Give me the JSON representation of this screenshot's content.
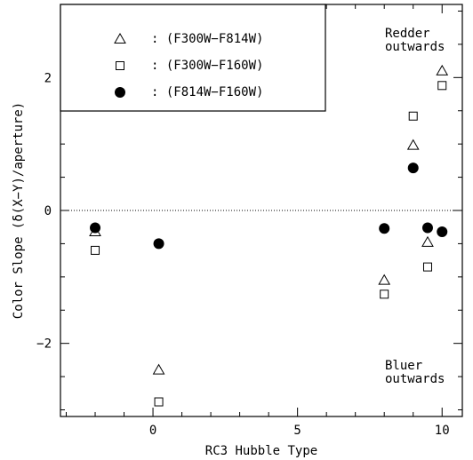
{
  "chart_data": {
    "type": "scatter",
    "xlabel": "RC3 Hubble Type",
    "ylabel": "Color Slope (δ(X−Y)/aperture)",
    "xlim": [
      -3.2,
      10.7
    ],
    "ylim": [
      -3.1,
      3.1
    ],
    "x_ticks": [
      0,
      5,
      10
    ],
    "x_tick_labels": [
      "0",
      "5",
      "10"
    ],
    "y_ticks": [
      -2,
      0,
      2
    ],
    "y_tick_labels": [
      "−2",
      "0",
      "2"
    ],
    "reference_line": {
      "y": 0,
      "style": "dotted"
    },
    "legend_placement": "top-left",
    "annotations": [
      {
        "lines": [
          "Redder",
          "outwards"
        ],
        "position": "top-right"
      },
      {
        "lines": [
          "Bluer",
          "outwards"
        ],
        "position": "bottom-right"
      }
    ],
    "series": [
      {
        "name": ": (F300W−F814W)",
        "marker": "open-triangle",
        "points": [
          [
            -2.0,
            -0.32
          ],
          [
            0.2,
            -2.4
          ],
          [
            8.0,
            -1.05
          ],
          [
            9.0,
            0.98
          ],
          [
            9.5,
            -0.48
          ],
          [
            10.0,
            2.1
          ]
        ]
      },
      {
        "name": ": (F300W−F160W)",
        "marker": "open-square",
        "points": [
          [
            -2.0,
            -0.6
          ],
          [
            0.2,
            -2.88
          ],
          [
            8.0,
            -1.26
          ],
          [
            9.0,
            1.42
          ],
          [
            9.5,
            -0.85
          ],
          [
            10.0,
            1.88
          ]
        ]
      },
      {
        "name": ": (F814W−F160W)",
        "marker": "filled-circle",
        "points": [
          [
            -2.0,
            -0.26
          ],
          [
            0.2,
            -0.5
          ],
          [
            8.0,
            -0.27
          ],
          [
            9.0,
            0.64
          ],
          [
            9.5,
            -0.26
          ],
          [
            10.0,
            -0.32
          ]
        ]
      }
    ]
  }
}
